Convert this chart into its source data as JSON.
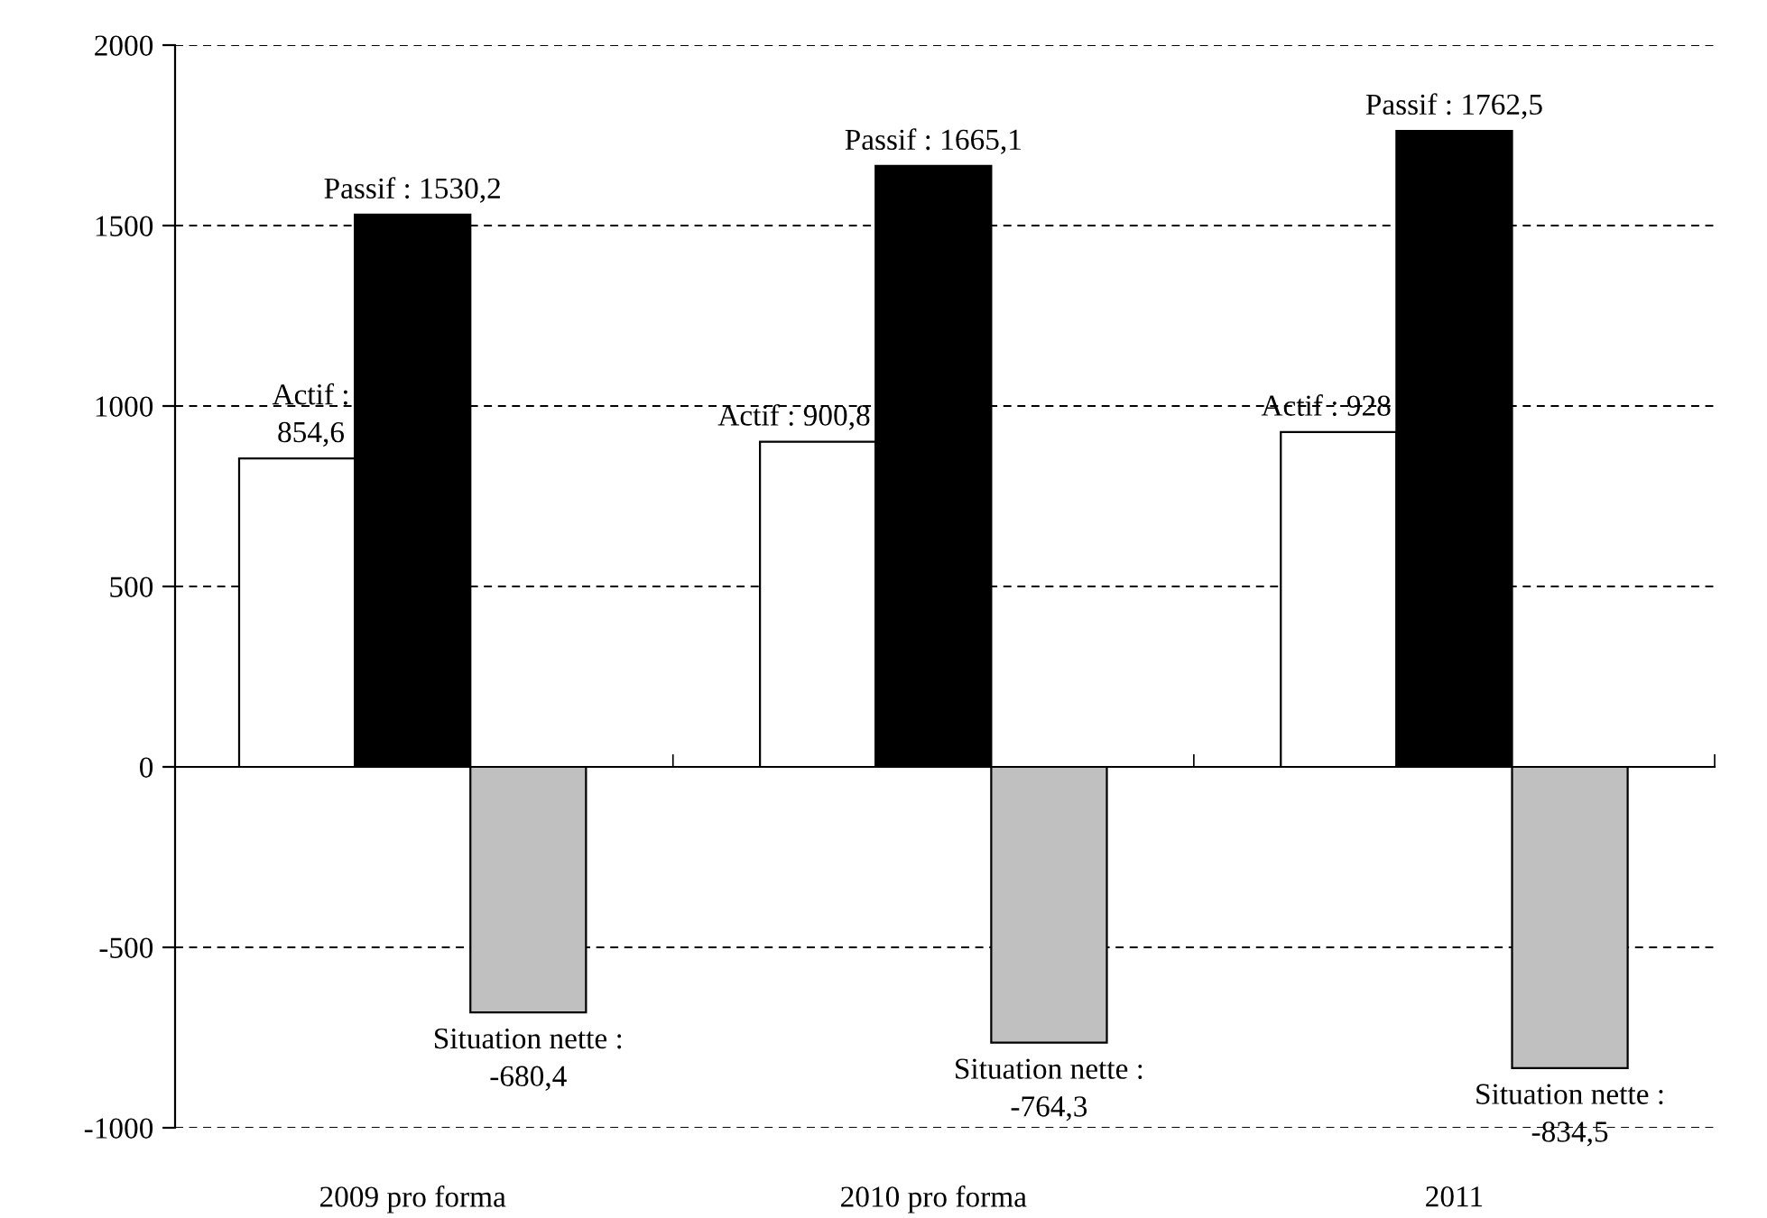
{
  "chart_data": {
    "type": "bar",
    "categories": [
      "2009 pro forma",
      "2010 pro forma",
      "2011"
    ],
    "series": [
      {
        "color": "#ffffff",
        "values": [
          854.6,
          900.8,
          928
        ],
        "value_labels": [
          "Actif :\n854,6",
          "Actif : 900,8",
          "Actif : 928"
        ]
      },
      {
        "color": "#000000",
        "values": [
          1530.2,
          1665.1,
          1762.5
        ],
        "value_labels": [
          "Passif : 1530,2",
          "Passif : 1665,1",
          "Passif : 1762,5"
        ]
      },
      {
        "color": "#c0c0c0",
        "values": [
          -680.4,
          -764.3,
          -834.5
        ],
        "value_labels": [
          "Situation nette :\n-680,4",
          "Situation nette :\n-764,3",
          "Situation nette :\n-834,5"
        ]
      }
    ],
    "ylim": [
      -1000,
      2000
    ],
    "yticks": [
      -1000,
      -500,
      0,
      500,
      1000,
      1500,
      2000
    ],
    "grid": "y",
    "legend": false
  }
}
